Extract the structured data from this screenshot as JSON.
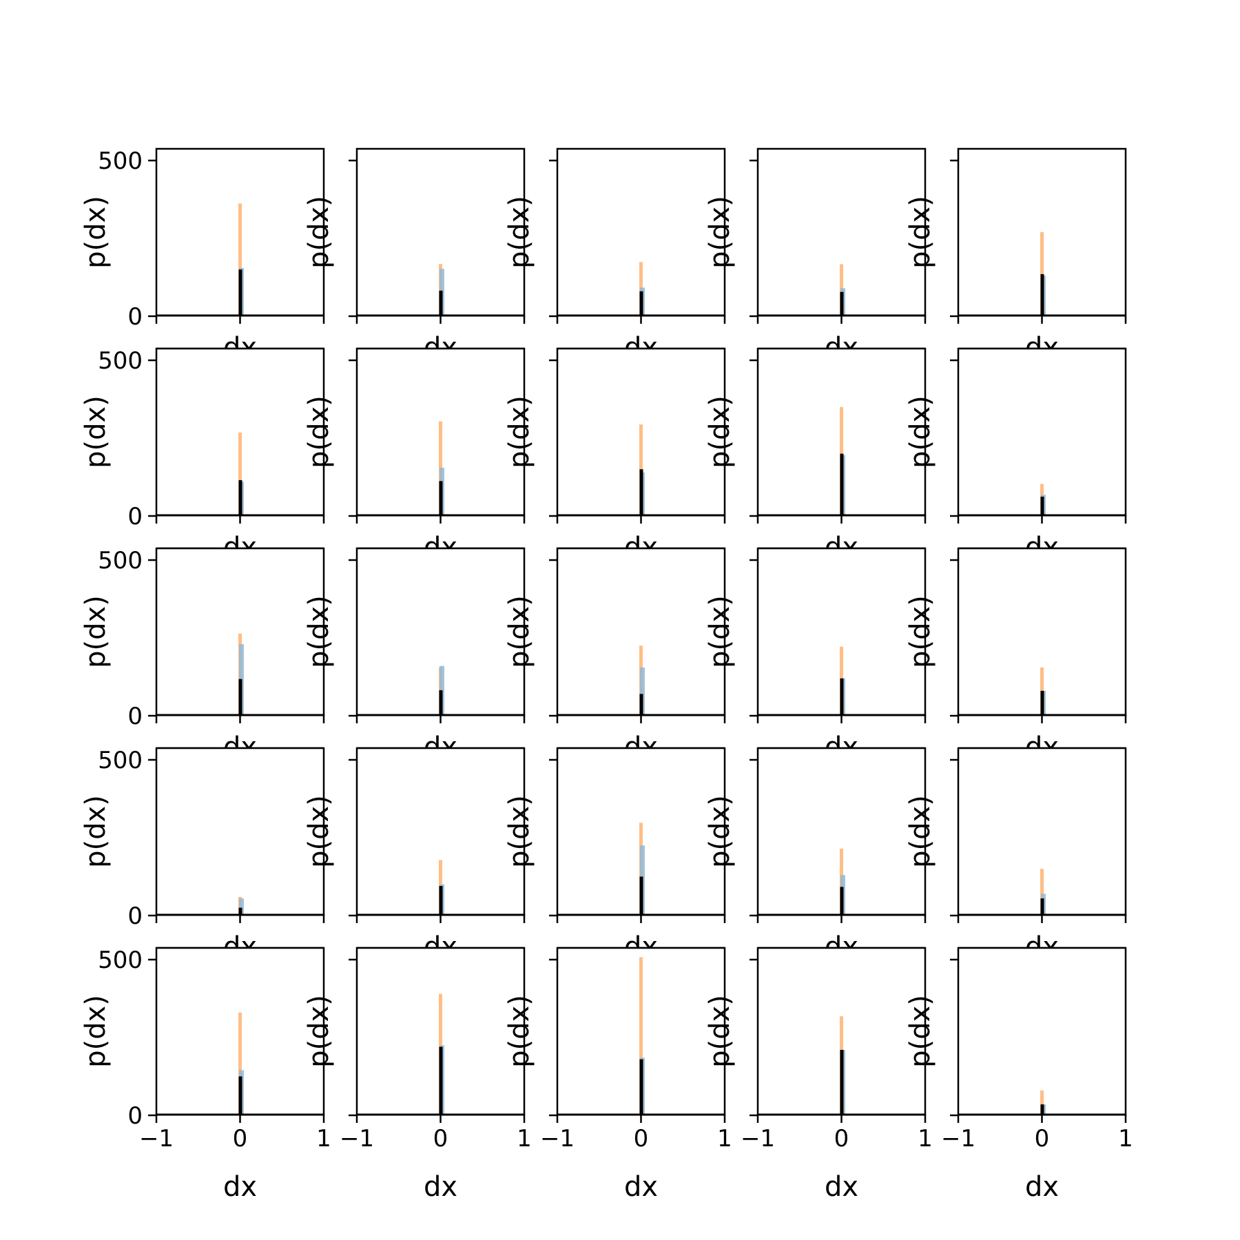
{
  "colors": {
    "orange": "#ffbe86",
    "blue": "#92b9d6",
    "black": "#000000"
  },
  "chart_data": {
    "type": "histogram-grid",
    "rows": 5,
    "cols": 5,
    "xlabel": "dx",
    "ylabel": "p(dx)",
    "xlim": [
      -1,
      1
    ],
    "ylim": [
      0,
      540
    ],
    "xticks": [
      -1,
      0,
      1
    ],
    "xtick_labels": [
      "−1",
      "0",
      "1"
    ],
    "yticks": [
      0,
      500
    ],
    "ytick_labels": [
      "0",
      "500"
    ],
    "panels": [
      {
        "peak": 362,
        "blue": 155,
        "black": 150
      },
      {
        "peak": 168,
        "blue": 152,
        "black": 82
      },
      {
        "peak": 174,
        "blue": 92,
        "black": 80
      },
      {
        "peak": 167,
        "blue": 90,
        "black": 78
      },
      {
        "peak": 270,
        "blue": 130,
        "black": 135
      },
      {
        "peak": 268,
        "blue": 110,
        "black": 115
      },
      {
        "peak": 304,
        "blue": 155,
        "black": 112
      },
      {
        "peak": 294,
        "blue": 140,
        "black": 150
      },
      {
        "peak": 350,
        "blue": 195,
        "black": 200
      },
      {
        "peak": 103,
        "blue": 68,
        "black": 62
      },
      {
        "peak": 264,
        "blue": 230,
        "black": 118
      },
      {
        "peak": 155,
        "blue": 160,
        "black": 82
      },
      {
        "peak": 225,
        "blue": 155,
        "black": 70
      },
      {
        "peak": 222,
        "blue": 120,
        "black": 120
      },
      {
        "peak": 155,
        "blue": 80,
        "black": 80
      },
      {
        "peak": 60,
        "blue": 55,
        "black": 25
      },
      {
        "peak": 178,
        "blue": 100,
        "black": 95
      },
      {
        "peak": 298,
        "blue": 225,
        "black": 125
      },
      {
        "peak": 215,
        "blue": 130,
        "black": 92
      },
      {
        "peak": 150,
        "blue": 70,
        "black": 55
      },
      {
        "peak": 330,
        "blue": 145,
        "black": 125
      },
      {
        "peak": 390,
        "blue": 225,
        "black": 220
      },
      {
        "peak": 510,
        "blue": 185,
        "black": 180
      },
      {
        "peak": 318,
        "blue": 210,
        "black": 210
      },
      {
        "peak": 80,
        "blue": 35,
        "black": 35
      }
    ]
  }
}
